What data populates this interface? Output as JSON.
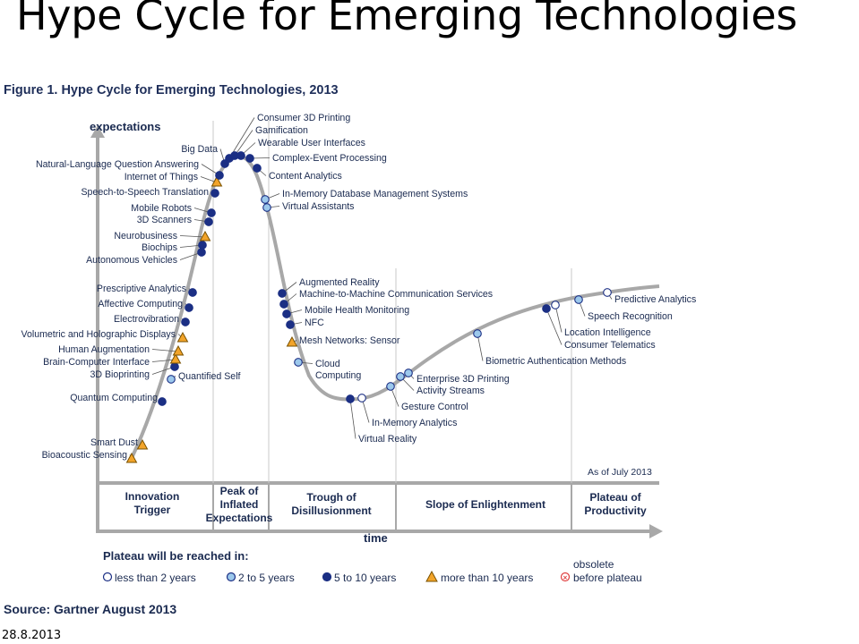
{
  "slide": {
    "title": "Hype Cycle for Emerging Technologies",
    "date": "28.8.2013"
  },
  "figure": {
    "title": "Figure 1. Hype Cycle for Emerging Technologies, 2013",
    "y_axis": "expectations",
    "x_axis": "time",
    "as_of": "As of July 2013",
    "source": "Source: Gartner August 2013",
    "phases": [
      [
        "Innovation",
        "Trigger"
      ],
      [
        "Peak of",
        "Inflated",
        "Expectations"
      ],
      [
        "Trough of",
        "Disillusionment"
      ],
      [
        "Slope of Enlightenment"
      ],
      [
        "Plateau of",
        "Productivity"
      ]
    ],
    "legend": {
      "title": "Plateau will be reached in:",
      "items": [
        {
          "key": "lt2",
          "label": "less than 2 years"
        },
        {
          "key": "2to5",
          "label": "2 to 5 years"
        },
        {
          "key": "5to10",
          "label": "5 to 10 years"
        },
        {
          "key": "gt10",
          "label": "more than 10 years"
        },
        {
          "key": "obs",
          "label": [
            "obsolete",
            "before plateau"
          ]
        }
      ]
    },
    "technologies": [
      {
        "name": "Bioacoustic Sensing",
        "cat": "gt10"
      },
      {
        "name": "Smart Dust",
        "cat": "gt10"
      },
      {
        "name": "Quantum Computing",
        "cat": "5to10"
      },
      {
        "name": "Quantified Self",
        "cat": "2to5"
      },
      {
        "name": "3D Bioprinting",
        "cat": "5to10"
      },
      {
        "name": "Brain-Computer Interface",
        "cat": "gt10"
      },
      {
        "name": "Human Augmentation",
        "cat": "gt10"
      },
      {
        "name": "Volumetric and Holographic Displays",
        "cat": "gt10"
      },
      {
        "name": "Electrovibration",
        "cat": "5to10"
      },
      {
        "name": "Affective Computing",
        "cat": "5to10"
      },
      {
        "name": "Prescriptive Analytics",
        "cat": "5to10"
      },
      {
        "name": "Autonomous Vehicles",
        "cat": "5to10"
      },
      {
        "name": "Biochips",
        "cat": "5to10"
      },
      {
        "name": "Neurobusiness",
        "cat": "gt10"
      },
      {
        "name": "3D Scanners",
        "cat": "5to10"
      },
      {
        "name": "Mobile Robots",
        "cat": "5to10"
      },
      {
        "name": "Speech-to-Speech Translation",
        "cat": "5to10"
      },
      {
        "name": "Internet of Things",
        "cat": "gt10"
      },
      {
        "name": "Natural-Language Question Answering",
        "cat": "5to10"
      },
      {
        "name": "Big Data",
        "cat": "5to10"
      },
      {
        "name": "Consumer 3D Printing",
        "cat": "5to10"
      },
      {
        "name": "Gamification",
        "cat": "5to10"
      },
      {
        "name": "Wearable User Interfaces",
        "cat": "5to10"
      },
      {
        "name": "Complex-Event Processing",
        "cat": "5to10"
      },
      {
        "name": "Content Analytics",
        "cat": "5to10"
      },
      {
        "name": "In-Memory Database Management Systems",
        "cat": "2to5"
      },
      {
        "name": "Virtual Assistants",
        "cat": "2to5"
      },
      {
        "name": "Augmented Reality",
        "cat": "5to10"
      },
      {
        "name": "Machine-to-Machine Communication Services",
        "cat": "5to10"
      },
      {
        "name": "Mobile Health Monitoring",
        "cat": "5to10"
      },
      {
        "name": "NFC",
        "cat": "5to10"
      },
      {
        "name": "Mesh Networks: Sensor",
        "cat": "gt10"
      },
      {
        "name": "Cloud Computing",
        "cat": "2to5"
      },
      {
        "name": "Virtual Reality",
        "cat": "5to10"
      },
      {
        "name": "In-Memory Analytics",
        "cat": "lt2"
      },
      {
        "name": "Gesture Control",
        "cat": "2to5"
      },
      {
        "name": "Activity Streams",
        "cat": "2to5"
      },
      {
        "name": "Enterprise 3D Printing",
        "cat": "2to5"
      },
      {
        "name": "Biometric Authentication Methods",
        "cat": "2to5"
      },
      {
        "name": "Consumer Telematics",
        "cat": "5to10"
      },
      {
        "name": "Location Intelligence",
        "cat": "lt2"
      },
      {
        "name": "Speech Recognition",
        "cat": "2to5"
      },
      {
        "name": "Predictive Analytics",
        "cat": "lt2"
      }
    ],
    "colors": {
      "lt2": "#ffffff",
      "2to5": "#9cc8ec",
      "5to10": "#1b2f84",
      "gt10": "#f2a42a",
      "obs": "#e04040",
      "curve": "#a8a8a8",
      "text": "#1a2a50"
    }
  }
}
